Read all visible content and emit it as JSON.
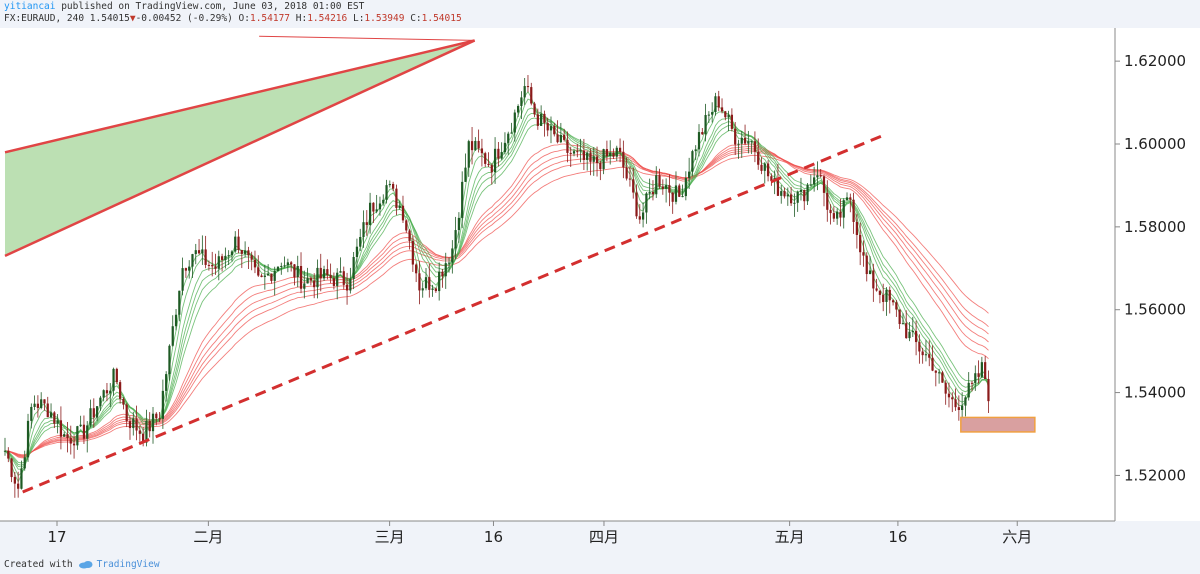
{
  "header": {
    "author": "yitiancai",
    "published": " published on TradingView.com, June 03, 2018 01:00 EST",
    "symbol": "FX:EURAUD, 240 1.54015",
    "change_arrow": "▼",
    "change": "-0.00452 (-0.29%)",
    "o_label": " O:",
    "o_value": "1.54177",
    "h_label": " H:",
    "h_value": "1.54216",
    "l_label": " L:",
    "l_value": "1.53949",
    "c_label": " C:",
    "c_value": "1.54015"
  },
  "footer": {
    "created_with": "Created with",
    "brand": "TradingView"
  },
  "colors": {
    "background": "#ffffff",
    "candle_up": "#1e5a24",
    "candle_down": "#8b1a1a",
    "short_ma": "#4caf50",
    "long_ma": "#ef5350",
    "trendline": "#d32f2f",
    "wedge_fill": "#a5d69a",
    "wedge_border": "#e04545",
    "target_box": "#d9a0a0",
    "target_border": "#f0a040"
  },
  "chart_data": {
    "type": "candlestick",
    "symbol": "FX:EURAUD",
    "timeframe": "240",
    "y_ticks": [
      "1.62000",
      "1.60000",
      "1.58000",
      "1.56000",
      "1.54000",
      "1.52000"
    ],
    "y_tick_values": [
      1.62,
      1.6,
      1.58,
      1.56,
      1.54,
      1.52
    ],
    "ylim": [
      1.509,
      1.628
    ],
    "x_ticks": [
      "17",
      "二月",
      "三月",
      "16",
      "四月",
      "五月",
      "16",
      "六月"
    ],
    "x_tick_positions": [
      0.0,
      0.137,
      0.301,
      0.395,
      0.495,
      0.663,
      0.761,
      0.869
    ],
    "close_path": [
      [
        0.0,
        1.526
      ],
      [
        0.012,
        1.517
      ],
      [
        0.025,
        1.538
      ],
      [
        0.04,
        1.536
      ],
      [
        0.055,
        1.529
      ],
      [
        0.07,
        1.53
      ],
      [
        0.085,
        1.538
      ],
      [
        0.1,
        1.544
      ],
      [
        0.11,
        1.534
      ],
      [
        0.125,
        1.53
      ],
      [
        0.14,
        1.535
      ],
      [
        0.15,
        1.552
      ],
      [
        0.16,
        1.57
      ],
      [
        0.17,
        1.574
      ],
      [
        0.19,
        1.57
      ],
      [
        0.21,
        1.577
      ],
      [
        0.23,
        1.566
      ],
      [
        0.25,
        1.572
      ],
      [
        0.27,
        1.567
      ],
      [
        0.29,
        1.568
      ],
      [
        0.31,
        1.567
      ],
      [
        0.33,
        1.584
      ],
      [
        0.345,
        1.59
      ],
      [
        0.36,
        1.584
      ],
      [
        0.375,
        1.566
      ],
      [
        0.39,
        1.567
      ],
      [
        0.405,
        1.575
      ],
      [
        0.42,
        1.6
      ],
      [
        0.44,
        1.595
      ],
      [
        0.46,
        1.606
      ],
      [
        0.47,
        1.614
      ],
      [
        0.48,
        1.607
      ],
      [
        0.495,
        1.602
      ],
      [
        0.51,
        1.598
      ],
      [
        0.53,
        1.595
      ],
      [
        0.555,
        1.598
      ],
      [
        0.575,
        1.582
      ],
      [
        0.59,
        1.592
      ],
      [
        0.61,
        1.587
      ],
      [
        0.625,
        1.6
      ],
      [
        0.645,
        1.611
      ],
      [
        0.66,
        1.602
      ],
      [
        0.675,
        1.601
      ],
      [
        0.695,
        1.59
      ],
      [
        0.72,
        1.587
      ],
      [
        0.735,
        1.594
      ],
      [
        0.75,
        1.58
      ],
      [
        0.765,
        1.587
      ],
      [
        0.78,
        1.568
      ],
      [
        0.8,
        1.562
      ],
      [
        0.82,
        1.553
      ],
      [
        0.84,
        1.547
      ],
      [
        0.85,
        1.54
      ],
      [
        0.86,
        1.537
      ],
      [
        0.875,
        1.541
      ],
      [
        0.885,
        1.546
      ],
      [
        0.89,
        1.54
      ]
    ],
    "trendline": {
      "start": [
        0.016,
        1.516
      ],
      "end": [
        0.794,
        1.602
      ],
      "style": "dashed"
    },
    "wedge": {
      "upper": [
        [
          0.0,
          1.598
        ],
        [
          0.425,
          1.625
        ]
      ],
      "lower": [
        [
          0.0,
          1.573
        ],
        [
          0.425,
          1.625
        ]
      ]
    },
    "target_zone": {
      "x0": 0.865,
      "x1": 0.932,
      "y0": 1.5305,
      "y1": 1.534
    },
    "grid": false
  }
}
